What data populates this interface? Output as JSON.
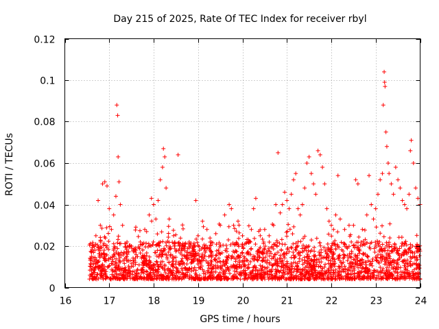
{
  "chart_data": {
    "type": "scatter",
    "title": "Day 215 of 2025, Rate Of TEC Index for receiver rbyl",
    "xlabel": "GPS time / hours",
    "ylabel": "ROTI / TECUs",
    "xlim": [
      16,
      24
    ],
    "ylim": [
      0,
      0.12
    ],
    "xticks": [
      "16",
      "17",
      "18",
      "19",
      "20",
      "21",
      "22",
      "23",
      "24"
    ],
    "yticks": [
      "0",
      "0.02",
      "0.04",
      "0.06",
      "0.08",
      "0.1",
      "0.12"
    ],
    "grid": true,
    "marker": "+",
    "color": "#ff0000",
    "series": [
      {
        "name": "ROTI",
        "description": "dense band of points from ~16.55 h to 24 h, values mostly 0.005-0.02 TECU/s",
        "points": [
          [
            16.6,
            0.015
          ],
          [
            16.7,
            0.025
          ],
          [
            16.75,
            0.042
          ],
          [
            16.8,
            0.03
          ],
          [
            16.85,
            0.05
          ],
          [
            16.9,
            0.051
          ],
          [
            16.95,
            0.049
          ],
          [
            17.0,
            0.038
          ],
          [
            17.05,
            0.028
          ],
          [
            17.1,
            0.035
          ],
          [
            17.15,
            0.044
          ],
          [
            17.17,
            0.088
          ],
          [
            17.19,
            0.083
          ],
          [
            17.2,
            0.063
          ],
          [
            17.22,
            0.051
          ],
          [
            17.25,
            0.04
          ],
          [
            17.3,
            0.03
          ],
          [
            17.4,
            0.022
          ],
          [
            17.5,
            0.02
          ],
          [
            17.6,
            0.018
          ],
          [
            17.7,
            0.022
          ],
          [
            17.8,
            0.028
          ],
          [
            17.9,
            0.035
          ],
          [
            17.95,
            0.043
          ],
          [
            18.0,
            0.04
          ],
          [
            18.05,
            0.033
          ],
          [
            18.1,
            0.042
          ],
          [
            18.15,
            0.052
          ],
          [
            18.2,
            0.058
          ],
          [
            18.22,
            0.067
          ],
          [
            18.25,
            0.063
          ],
          [
            18.28,
            0.048
          ],
          [
            18.35,
            0.033
          ],
          [
            18.45,
            0.025
          ],
          [
            18.55,
            0.064
          ],
          [
            18.6,
            0.02
          ],
          [
            18.7,
            0.018
          ],
          [
            18.8,
            0.022
          ],
          [
            18.9,
            0.02
          ],
          [
            18.95,
            0.042
          ],
          [
            19.0,
            0.025
          ],
          [
            19.1,
            0.032
          ],
          [
            19.2,
            0.028
          ],
          [
            19.3,
            0.022
          ],
          [
            19.4,
            0.026
          ],
          [
            19.5,
            0.03
          ],
          [
            19.6,
            0.035
          ],
          [
            19.7,
            0.04
          ],
          [
            19.75,
            0.038
          ],
          [
            19.8,
            0.03
          ],
          [
            19.9,
            0.032
          ],
          [
            20.0,
            0.025
          ],
          [
            20.1,
            0.022
          ],
          [
            20.2,
            0.028
          ],
          [
            20.25,
            0.038
          ],
          [
            20.3,
            0.043
          ],
          [
            20.4,
            0.025
          ],
          [
            20.5,
            0.028
          ],
          [
            20.6,
            0.025
          ],
          [
            20.7,
            0.03
          ],
          [
            20.75,
            0.04
          ],
          [
            20.8,
            0.065
          ],
          [
            20.85,
            0.036
          ],
          [
            20.9,
            0.04
          ],
          [
            20.95,
            0.046
          ],
          [
            21.0,
            0.042
          ],
          [
            21.05,
            0.038
          ],
          [
            21.1,
            0.045
          ],
          [
            21.15,
            0.052
          ],
          [
            21.2,
            0.055
          ],
          [
            21.25,
            0.038
          ],
          [
            21.3,
            0.035
          ],
          [
            21.35,
            0.04
          ],
          [
            21.4,
            0.048
          ],
          [
            21.45,
            0.06
          ],
          [
            21.5,
            0.063
          ],
          [
            21.55,
            0.055
          ],
          [
            21.6,
            0.05
          ],
          [
            21.65,
            0.045
          ],
          [
            21.7,
            0.066
          ],
          [
            21.75,
            0.064
          ],
          [
            21.8,
            0.058
          ],
          [
            21.85,
            0.05
          ],
          [
            21.9,
            0.038
          ],
          [
            21.95,
            0.032
          ],
          [
            22.0,
            0.03
          ],
          [
            22.05,
            0.028
          ],
          [
            22.1,
            0.035
          ],
          [
            22.15,
            0.054
          ],
          [
            22.2,
            0.033
          ],
          [
            22.3,
            0.028
          ],
          [
            22.4,
            0.03
          ],
          [
            22.45,
            0.022
          ],
          [
            22.5,
            0.03
          ],
          [
            22.55,
            0.052
          ],
          [
            22.6,
            0.05
          ],
          [
            22.7,
            0.028
          ],
          [
            22.8,
            0.035
          ],
          [
            22.85,
            0.054
          ],
          [
            22.9,
            0.04
          ],
          [
            22.95,
            0.033
          ],
          [
            23.0,
            0.038
          ],
          [
            23.05,
            0.045
          ],
          [
            23.1,
            0.052
          ],
          [
            23.15,
            0.055
          ],
          [
            23.17,
            0.088
          ],
          [
            23.19,
            0.104
          ],
          [
            23.2,
            0.099
          ],
          [
            23.21,
            0.097
          ],
          [
            23.23,
            0.075
          ],
          [
            23.25,
            0.068
          ],
          [
            23.28,
            0.06
          ],
          [
            23.3,
            0.055
          ],
          [
            23.35,
            0.05
          ],
          [
            23.4,
            0.045
          ],
          [
            23.45,
            0.058
          ],
          [
            23.5,
            0.052
          ],
          [
            23.55,
            0.048
          ],
          [
            23.6,
            0.042
          ],
          [
            23.65,
            0.04
          ],
          [
            23.7,
            0.038
          ],
          [
            23.75,
            0.045
          ],
          [
            23.78,
            0.066
          ],
          [
            23.8,
            0.071
          ],
          [
            23.85,
            0.06
          ],
          [
            23.9,
            0.048
          ],
          [
            23.95,
            0.043
          ],
          [
            24.0,
            0.04
          ]
        ]
      }
    ]
  }
}
